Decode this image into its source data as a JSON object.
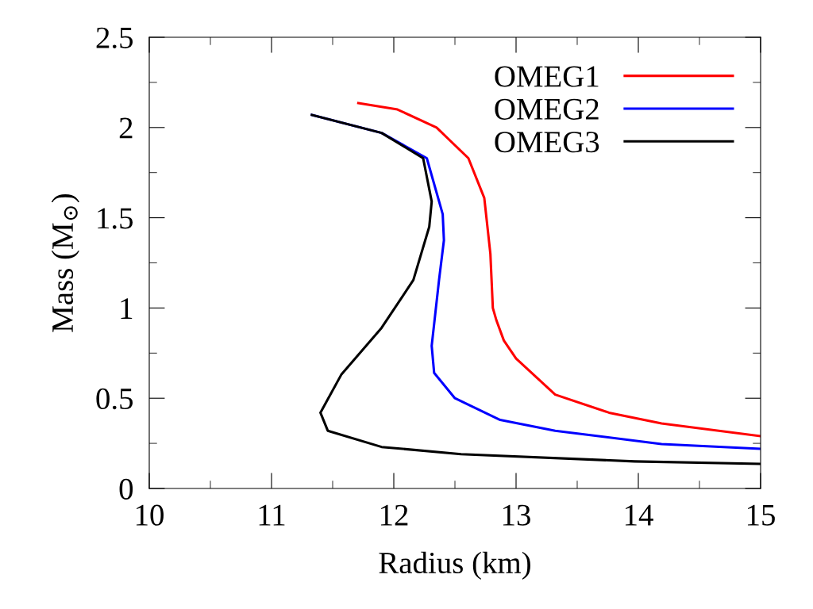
{
  "chart_data": {
    "type": "line",
    "xlabel": "Radius (km)",
    "ylabel": "Mass (M$_{⊙}$)",
    "xlim": [
      10,
      15
    ],
    "ylim": [
      0,
      2.5
    ],
    "xticks": [
      10,
      11,
      12,
      13,
      14,
      15
    ],
    "yticks": [
      0,
      0.5,
      1,
      1.5,
      2,
      2.5
    ],
    "grid": false,
    "legend": "top right",
    "series": [
      {
        "name": "OMEG1",
        "color": "#ff0000",
        "x": [
          11.71,
          12.03,
          12.35,
          12.61,
          12.74,
          12.79,
          12.81,
          12.84,
          12.9,
          13.0,
          13.32,
          13.76,
          14.19,
          15.0
        ],
        "values": [
          2.135,
          2.1,
          2.0,
          1.83,
          1.61,
          1.3,
          1.0,
          0.93,
          0.82,
          0.72,
          0.52,
          0.42,
          0.36,
          0.29
        ]
      },
      {
        "name": "OMEG2",
        "color": "#0000ff",
        "x": [
          11.33,
          11.9,
          12.27,
          12.4,
          12.41,
          12.37,
          12.31,
          12.33,
          12.5,
          12.87,
          13.32,
          14.19,
          15.0
        ],
        "values": [
          2.07,
          1.97,
          1.83,
          1.52,
          1.375,
          1.155,
          0.79,
          0.64,
          0.5,
          0.38,
          0.32,
          0.246,
          0.22
        ]
      },
      {
        "name": "OMEG3",
        "color": "#000000",
        "x": [
          11.33,
          11.9,
          12.24,
          12.31,
          12.29,
          12.16,
          11.9,
          11.57,
          11.4,
          11.46,
          11.9,
          12.55,
          13.97,
          15.0
        ],
        "values": [
          2.07,
          1.97,
          1.83,
          1.59,
          1.45,
          1.155,
          0.89,
          0.63,
          0.42,
          0.32,
          0.23,
          0.19,
          0.15,
          0.136
        ]
      }
    ]
  }
}
